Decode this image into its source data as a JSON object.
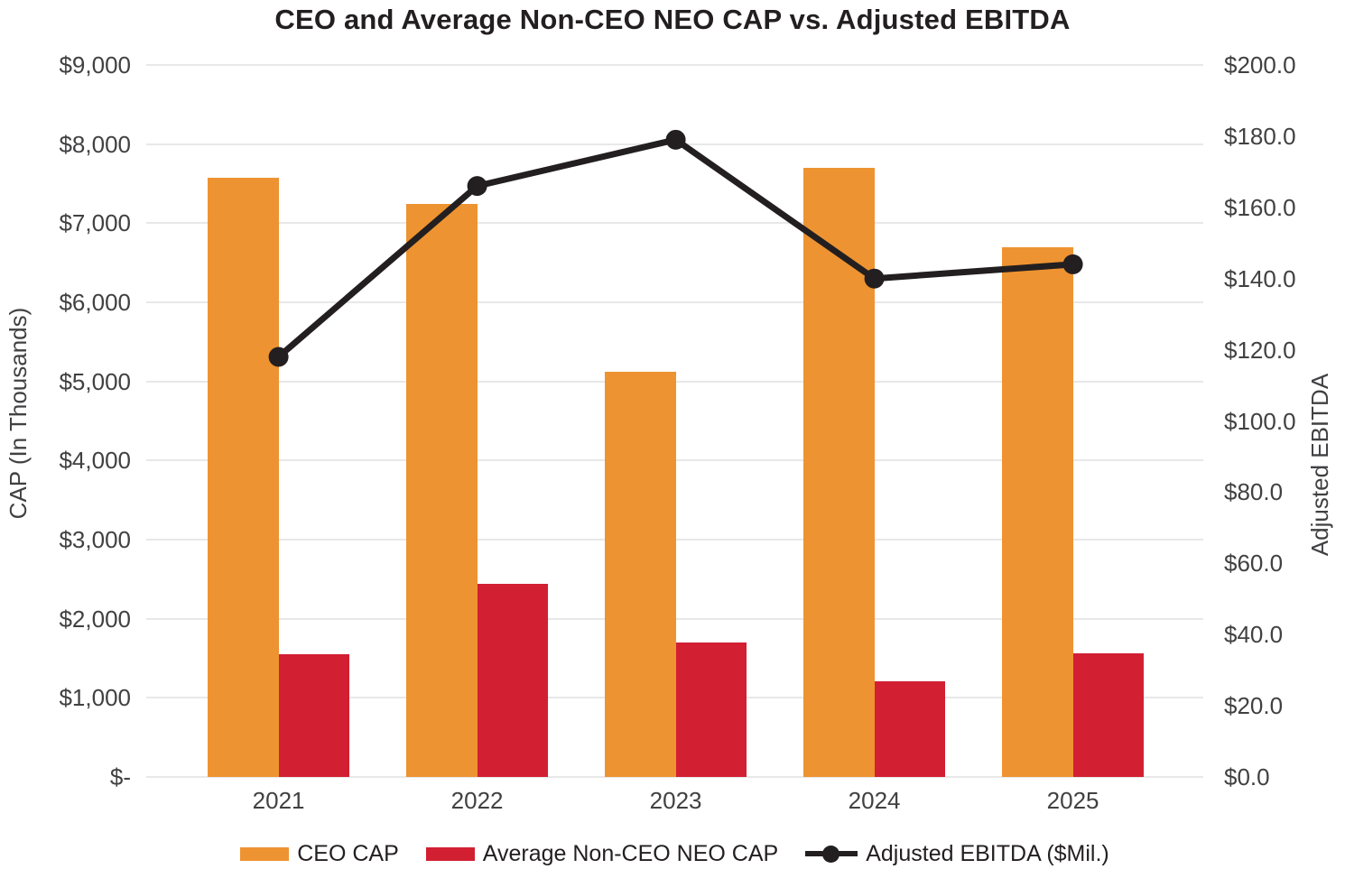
{
  "chart_data": {
    "type": "bar",
    "subtype": "combo-bar-line-dual-axis",
    "title": "CEO and Average Non-CEO NEO CAP vs. Adjusted EBITDA",
    "categories": [
      "2021",
      "2022",
      "2023",
      "2024",
      "2025"
    ],
    "series": [
      {
        "name": "CEO CAP",
        "type": "bar",
        "axis": "left",
        "color": "#EE9331",
        "values": [
          7570,
          7240,
          5120,
          7700,
          6700
        ]
      },
      {
        "name": "Average Non-CEO NEO CAP",
        "type": "bar",
        "axis": "left",
        "color": "#D21F32",
        "values": [
          1555,
          2445,
          1700,
          1210,
          1560
        ]
      },
      {
        "name": "Adjusted EBITDA ($Mil.)",
        "type": "line",
        "axis": "right",
        "color": "#231F20",
        "values": [
          118,
          166,
          179,
          140,
          144
        ]
      }
    ],
    "left_axis": {
      "title": "CAP (In Thousands)",
      "min": 0,
      "max": 9000,
      "step": 1000,
      "tick_labels": [
        "$-",
        "$1,000",
        "$2,000",
        "$3,000",
        "$4,000",
        "$5,000",
        "$6,000",
        "$7,000",
        "$8,000",
        "$9,000"
      ]
    },
    "right_axis": {
      "title": "Adjusted EBITDA",
      "min": 0,
      "max": 200,
      "step": 20,
      "tick_labels": [
        "$0.0",
        "$20.0",
        "$40.0",
        "$60.0",
        "$80.0",
        "$100.0",
        "$120.0",
        "$140.0",
        "$160.0",
        "$180.0",
        "$200.0"
      ]
    },
    "legend": [
      {
        "label": "CEO CAP",
        "marker": "swatch",
        "color": "#EE9331"
      },
      {
        "label": "Average Non-CEO NEO CAP",
        "marker": "swatch",
        "color": "#D21F32"
      },
      {
        "label": "Adjusted EBITDA ($Mil.)",
        "marker": "line-dot",
        "color": "#231F20"
      }
    ],
    "grid": "horizontal",
    "legend_position": "bottom",
    "colors": {
      "background": "#FFFFFF",
      "gridline": "#E8E8E8",
      "axis_text": "#414042",
      "title_text": "#231F20"
    }
  }
}
